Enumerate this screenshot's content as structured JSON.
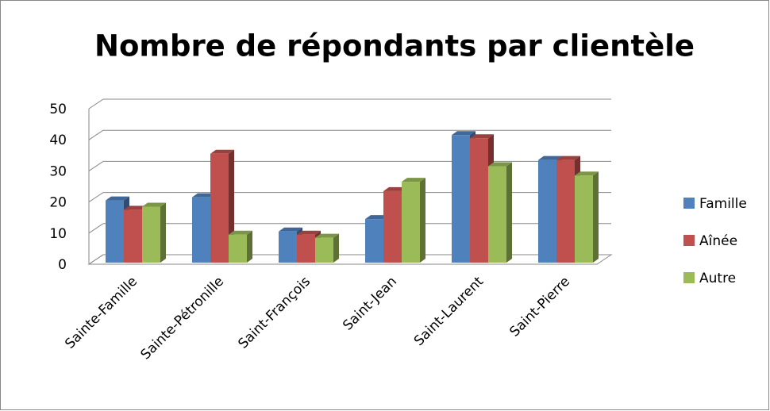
{
  "chart_data": {
    "type": "bar3d",
    "title": "Nombre de répondants par clientèle",
    "categories": [
      "Sainte-Famille",
      "Sainte-Pétronille",
      "Saint-François",
      "Saint-Jean",
      "Saint-Laurent",
      "Saint-Pierre"
    ],
    "series": [
      {
        "name": "Famille",
        "color": "#4f81bd",
        "values": [
          20,
          21,
          10,
          14,
          41,
          33
        ]
      },
      {
        "name": "Aînée",
        "color": "#c0504d",
        "values": [
          17,
          35,
          9,
          23,
          40,
          33
        ]
      },
      {
        "name": "Autre",
        "color": "#9bbb59",
        "values": [
          18,
          9,
          8,
          26,
          31,
          28
        ]
      }
    ],
    "ylim": [
      0,
      50
    ],
    "yticks": [
      0,
      10,
      20,
      30,
      40,
      50
    ],
    "grid": true,
    "legend": "right"
  }
}
